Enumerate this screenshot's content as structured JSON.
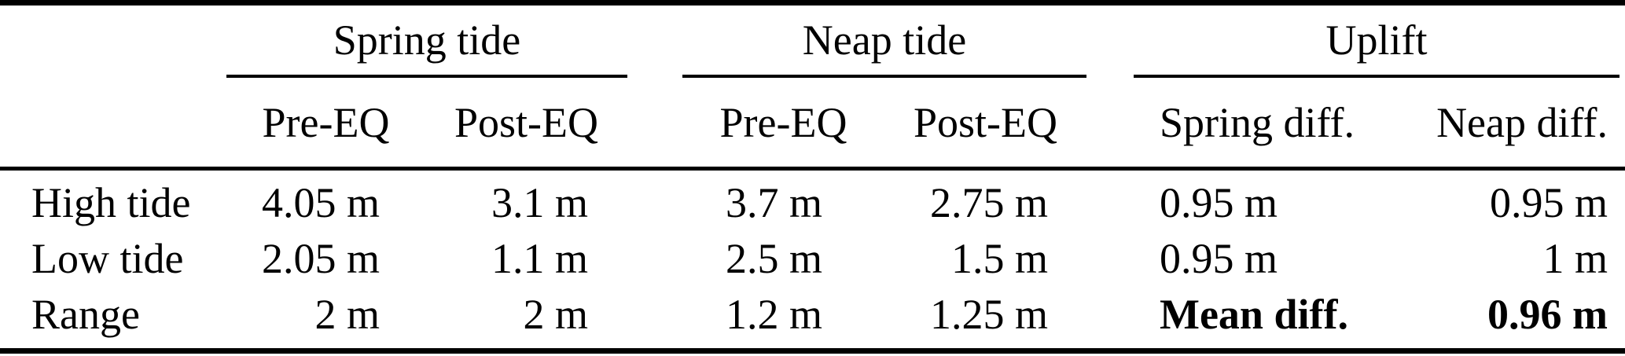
{
  "meta": {
    "background_color": "#ffffff",
    "text_color": "#000000",
    "rule_color": "#000000"
  },
  "table": {
    "corner_label": "",
    "groups": [
      {
        "label": "Spring tide",
        "subcolumns": [
          "Pre-EQ",
          "Post-EQ"
        ]
      },
      {
        "label": "Neap tide",
        "subcolumns": [
          "Pre-EQ",
          "Post-EQ"
        ]
      },
      {
        "label": "Uplift",
        "subcolumns": [
          "Spring diff.",
          "Neap diff."
        ]
      }
    ],
    "rows": [
      {
        "label": "High tide",
        "spring_pre": "4.05 m",
        "spring_post": "3.1 m",
        "neap_pre": "3.7 m",
        "neap_post": "2.75 m",
        "uplift_spring": "0.95 m",
        "uplift_neap": "0.95 m"
      },
      {
        "label": "Low tide",
        "spring_pre": "2.05 m",
        "spring_post": "1.1 m",
        "neap_pre": "2.5 m",
        "neap_post": "1.5 m",
        "uplift_spring": "0.95 m",
        "uplift_neap": "1 m"
      },
      {
        "label": "Range",
        "spring_pre": "2 m",
        "spring_post": "2 m",
        "neap_pre": "1.2 m",
        "neap_post": "1.25 m",
        "uplift_spring": "Mean diff.",
        "uplift_neap": "0.96 m"
      }
    ]
  }
}
